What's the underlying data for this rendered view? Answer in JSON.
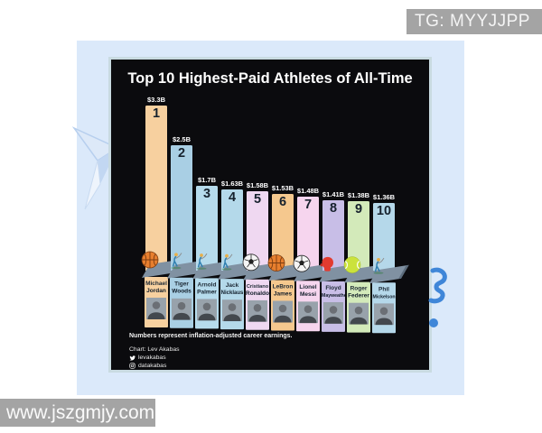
{
  "watermarks": {
    "top_right": "TG: MYYJJPP",
    "bottom_left": "www.jszgmjy.com"
  },
  "colors": {
    "card_background": "#0b0b0e",
    "panel_background": "#dbe9fa",
    "watermark_background": "#a4a4a4",
    "pedestal_gray": "#8091a2",
    "decor_blue": "#3f86d8"
  },
  "chart_data": {
    "type": "bar",
    "title": "Top 10 Highest-Paid Athletes of All-Time",
    "note": "Numbers represent inflation-adjusted career earnings.",
    "value_unit": "billion USD, inflation-adjusted career earnings",
    "legend_position": "none",
    "grid": false,
    "credits": {
      "chart": "Chart: Lev Akabas",
      "twitter_handle": "levakabas",
      "instagram_handle": "datakabas"
    },
    "categories": [
      "Michael Jordan",
      "Tiger Woods",
      "Arnold Palmer",
      "Jack Nicklaus",
      "Cristiano Ronaldo",
      "LeBron James",
      "Lionel Messi",
      "Floyd Mayweather",
      "Roger Federer",
      "Phil Mickelson"
    ],
    "bars": [
      {
        "rank": "1",
        "first": "Michael",
        "last": "Jordan",
        "value": 3.3,
        "label": "$3.3B",
        "color": "#f7d09f",
        "icon": "basketball"
      },
      {
        "rank": "2",
        "first": "Tiger",
        "last": "Woods",
        "value": 2.5,
        "label": "$2.5B",
        "color": "#a9cfe4",
        "icon": "golfer"
      },
      {
        "rank": "3",
        "first": "Arnold",
        "last": "Palmer",
        "value": 1.7,
        "label": "$1.7B",
        "color": "#b6dbec",
        "icon": "golfer"
      },
      {
        "rank": "4",
        "first": "Jack",
        "last": "Nicklaus",
        "value": 1.63,
        "label": "$1.63B",
        "color": "#b4d9ea",
        "icon": "golfer"
      },
      {
        "rank": "5",
        "first": "Cristiano",
        "last": "Ronaldo",
        "value": 1.58,
        "label": "$1.58B",
        "color": "#efd8f1",
        "icon": "soccer-ball"
      },
      {
        "rank": "6",
        "first": "LeBron",
        "last": "James",
        "value": 1.53,
        "label": "$1.53B",
        "color": "#f5c88e",
        "icon": "basketball"
      },
      {
        "rank": "7",
        "first": "Lionel",
        "last": "Messi",
        "value": 1.48,
        "label": "$1.48B",
        "color": "#f6d5ee",
        "icon": "soccer-ball"
      },
      {
        "rank": "8",
        "first": "Floyd",
        "last": "Mayweather",
        "value": 1.41,
        "label": "$1.41B",
        "color": "#c8bee7",
        "icon": "boxing-glove"
      },
      {
        "rank": "9",
        "first": "Roger",
        "last": "Federer",
        "value": 1.38,
        "label": "$1.38B",
        "color": "#d3eaba",
        "icon": "tennis-ball"
      },
      {
        "rank": "10",
        "first": "Phil",
        "last": "Mickelson",
        "value": 1.36,
        "label": "$1.36B",
        "color": "#b5d8ea",
        "icon": "golfer"
      }
    ]
  }
}
